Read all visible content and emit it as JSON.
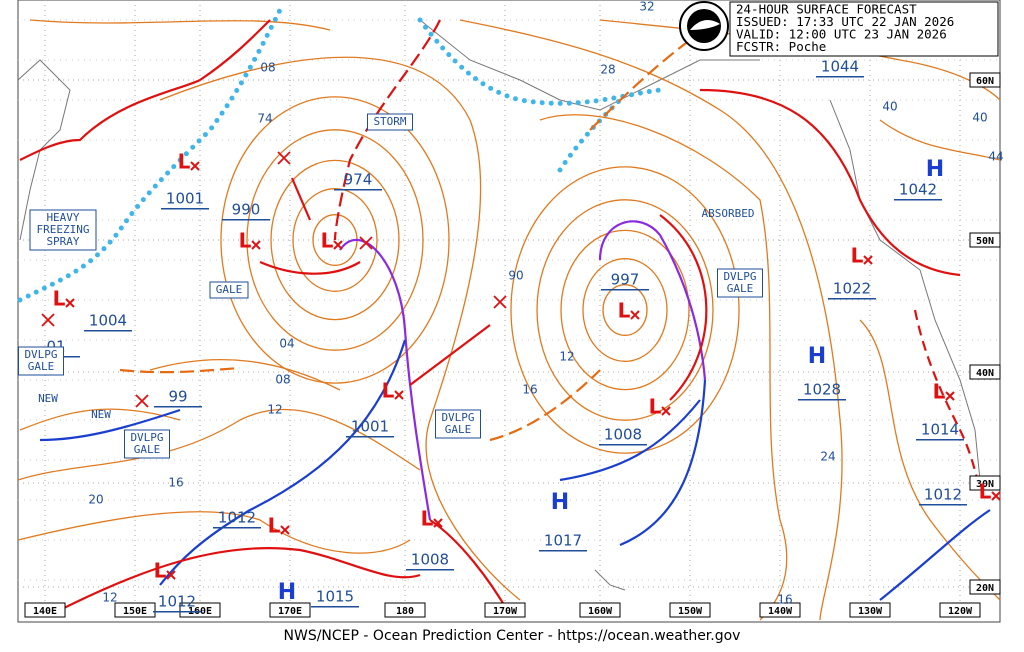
{
  "header": {
    "lines": [
      "24-HOUR SURFACE FORECAST",
      "ISSUED: 17:33 UTC 22 JAN 2026",
      "VALID:  12:00 UTC 23 JAN 2026",
      "FCSTR:  Poche"
    ]
  },
  "footer": "NWS/NCEP - Ocean Prediction Center - https://ocean.weather.gov",
  "longitudes": [
    "140E",
    "150E",
    "160E",
    "170E",
    "180",
    "170W",
    "160W",
    "150W",
    "140W",
    "130W",
    "120W"
  ],
  "latitudes": [
    "60N",
    "50N",
    "40N",
    "30N",
    "20N"
  ],
  "pressure_labels": [
    "1044",
    "1042",
    "1022",
    "1028",
    "1014",
    "1012",
    "997",
    "1008",
    "1017",
    "1008",
    "974",
    "990",
    "1001",
    "1004",
    "01",
    "99",
    "1001",
    "1012",
    "1012",
    "1015",
    "74",
    "08",
    "04",
    "08",
    "12",
    "16",
    "20",
    "12",
    "12",
    "16",
    "24",
    "28",
    "32",
    "40",
    "40",
    "44",
    "16",
    "90"
  ],
  "annotations": [
    {
      "lines": [
        "STORM"
      ]
    },
    {
      "lines": [
        "GALE"
      ]
    },
    {
      "lines": [
        "HEAVY",
        "FREEZING",
        "SPRAY"
      ]
    },
    {
      "lines": [
        "DVLPG",
        "GALE"
      ]
    },
    {
      "lines": [
        "DVLPG",
        "GALE"
      ]
    },
    {
      "lines": [
        "DVLPG",
        "GALE"
      ]
    },
    {
      "lines": [
        "DVLPG",
        "GALE"
      ]
    },
    {
      "lines": [
        "ABSORBED"
      ]
    },
    {
      "lines": [
        "NEW"
      ]
    },
    {
      "lines": [
        "NEW"
      ]
    }
  ],
  "symbols": {
    "high": "H",
    "low": "L"
  }
}
